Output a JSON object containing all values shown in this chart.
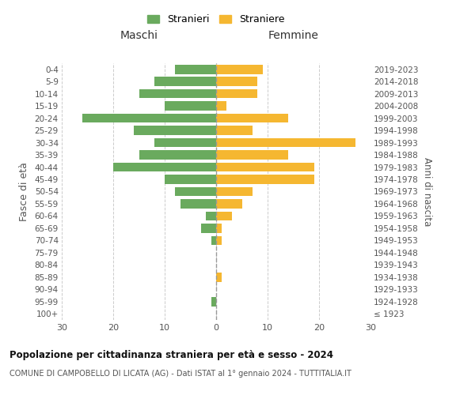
{
  "age_groups": [
    "100+",
    "95-99",
    "90-94",
    "85-89",
    "80-84",
    "75-79",
    "70-74",
    "65-69",
    "60-64",
    "55-59",
    "50-54",
    "45-49",
    "40-44",
    "35-39",
    "30-34",
    "25-29",
    "20-24",
    "15-19",
    "10-14",
    "5-9",
    "0-4"
  ],
  "birth_years": [
    "≤ 1923",
    "1924-1928",
    "1929-1933",
    "1934-1938",
    "1939-1943",
    "1944-1948",
    "1949-1953",
    "1954-1958",
    "1959-1963",
    "1964-1968",
    "1969-1973",
    "1974-1978",
    "1979-1983",
    "1984-1988",
    "1989-1993",
    "1994-1998",
    "1999-2003",
    "2004-2008",
    "2009-2013",
    "2014-2018",
    "2019-2023"
  ],
  "maschi": [
    0,
    1,
    0,
    0,
    0,
    0,
    1,
    3,
    2,
    7,
    8,
    10,
    20,
    15,
    12,
    16,
    26,
    10,
    15,
    12,
    8
  ],
  "femmine": [
    0,
    0,
    0,
    1,
    0,
    0,
    1,
    1,
    3,
    5,
    7,
    19,
    19,
    14,
    27,
    7,
    14,
    2,
    8,
    8,
    9
  ],
  "maschi_color": "#6aaa5e",
  "femmine_color": "#f5b731",
  "title_maschi": "Maschi",
  "title_femmine": "Femmine",
  "legend_maschi": "Stranieri",
  "legend_femmine": "Straniere",
  "ylabel": "Fasce di età",
  "right_ylabel": "Anni di nascita",
  "main_title": "Popolazione per cittadinanza straniera per età e sesso - 2024",
  "subtitle": "COMUNE DI CAMPOBELLO DI LICATA (AG) - Dati ISTAT al 1° gennaio 2024 - TUTTITALIA.IT",
  "xlim": 30,
  "background_color": "#ffffff",
  "grid_color": "#cccccc",
  "center_line_color": "#999999"
}
